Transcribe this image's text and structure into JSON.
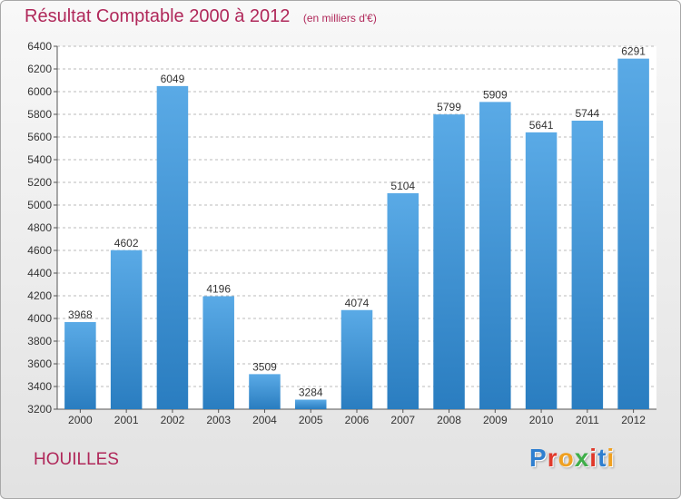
{
  "header": {
    "title": "Résultat Comptable 2000 à 2012",
    "unit": "(en milliers d'€)"
  },
  "footer": {
    "place": "HOUILLES",
    "logo_letters": [
      "P",
      "r",
      "o",
      "x",
      "i",
      "t",
      "i"
    ]
  },
  "colors": {
    "bar_light": "#5aaae6",
    "bar_dark": "#2a7dc0",
    "title": "#b0285a",
    "grid": "#bbbbbb"
  },
  "chart_data": {
    "type": "bar",
    "title": "Résultat Comptable 2000 à 2012",
    "xlabel": "",
    "ylabel": "",
    "categories": [
      "2000",
      "2001",
      "2002",
      "2003",
      "2004",
      "2005",
      "2006",
      "2007",
      "2008",
      "2009",
      "2010",
      "2011",
      "2012"
    ],
    "values": [
      3968,
      4602,
      6049,
      4196,
      3509,
      3284,
      4074,
      5104,
      5799,
      5909,
      5641,
      5744,
      6291
    ],
    "ylim": [
      3200,
      6400
    ],
    "yticks": [
      3200,
      3400,
      3600,
      3800,
      4000,
      4200,
      4400,
      4600,
      4800,
      5000,
      5200,
      5400,
      5600,
      5800,
      6000,
      6200,
      6400
    ],
    "grid": true,
    "legend": "none"
  }
}
